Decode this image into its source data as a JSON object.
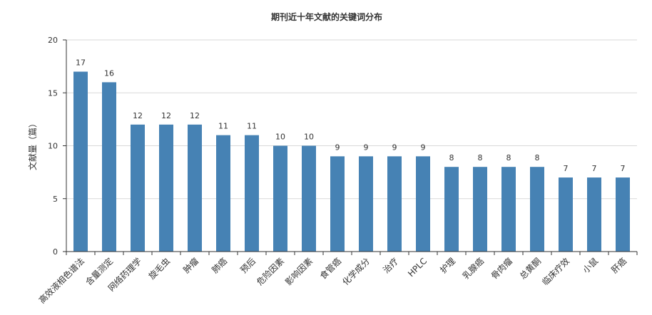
{
  "chart_data": {
    "type": "bar",
    "title": "期刊近十年文献的关键词分布",
    "ylabel": "文献量（篇）",
    "xlabel": "",
    "ylim": [
      0,
      20
    ],
    "yticks": [
      0,
      5,
      10,
      15,
      20
    ],
    "grid": true,
    "legend": "none",
    "bar_color": "#4682b4",
    "categories": [
      "高效液相色谱法",
      "含量测定",
      "网络药理学",
      "旋毛虫",
      "肿瘤",
      "肺癌",
      "预后",
      "危险因素",
      "影响因素",
      "食管癌",
      "化学成分",
      "治疗",
      "HPLC",
      "护理",
      "乳腺癌",
      "骨肉瘤",
      "总黄酮",
      "临床疗效",
      "小鼠",
      "肝癌"
    ],
    "values": [
      17,
      16,
      12,
      12,
      12,
      11,
      11,
      10,
      10,
      9,
      9,
      9,
      9,
      8,
      8,
      8,
      8,
      7,
      7,
      7
    ]
  }
}
